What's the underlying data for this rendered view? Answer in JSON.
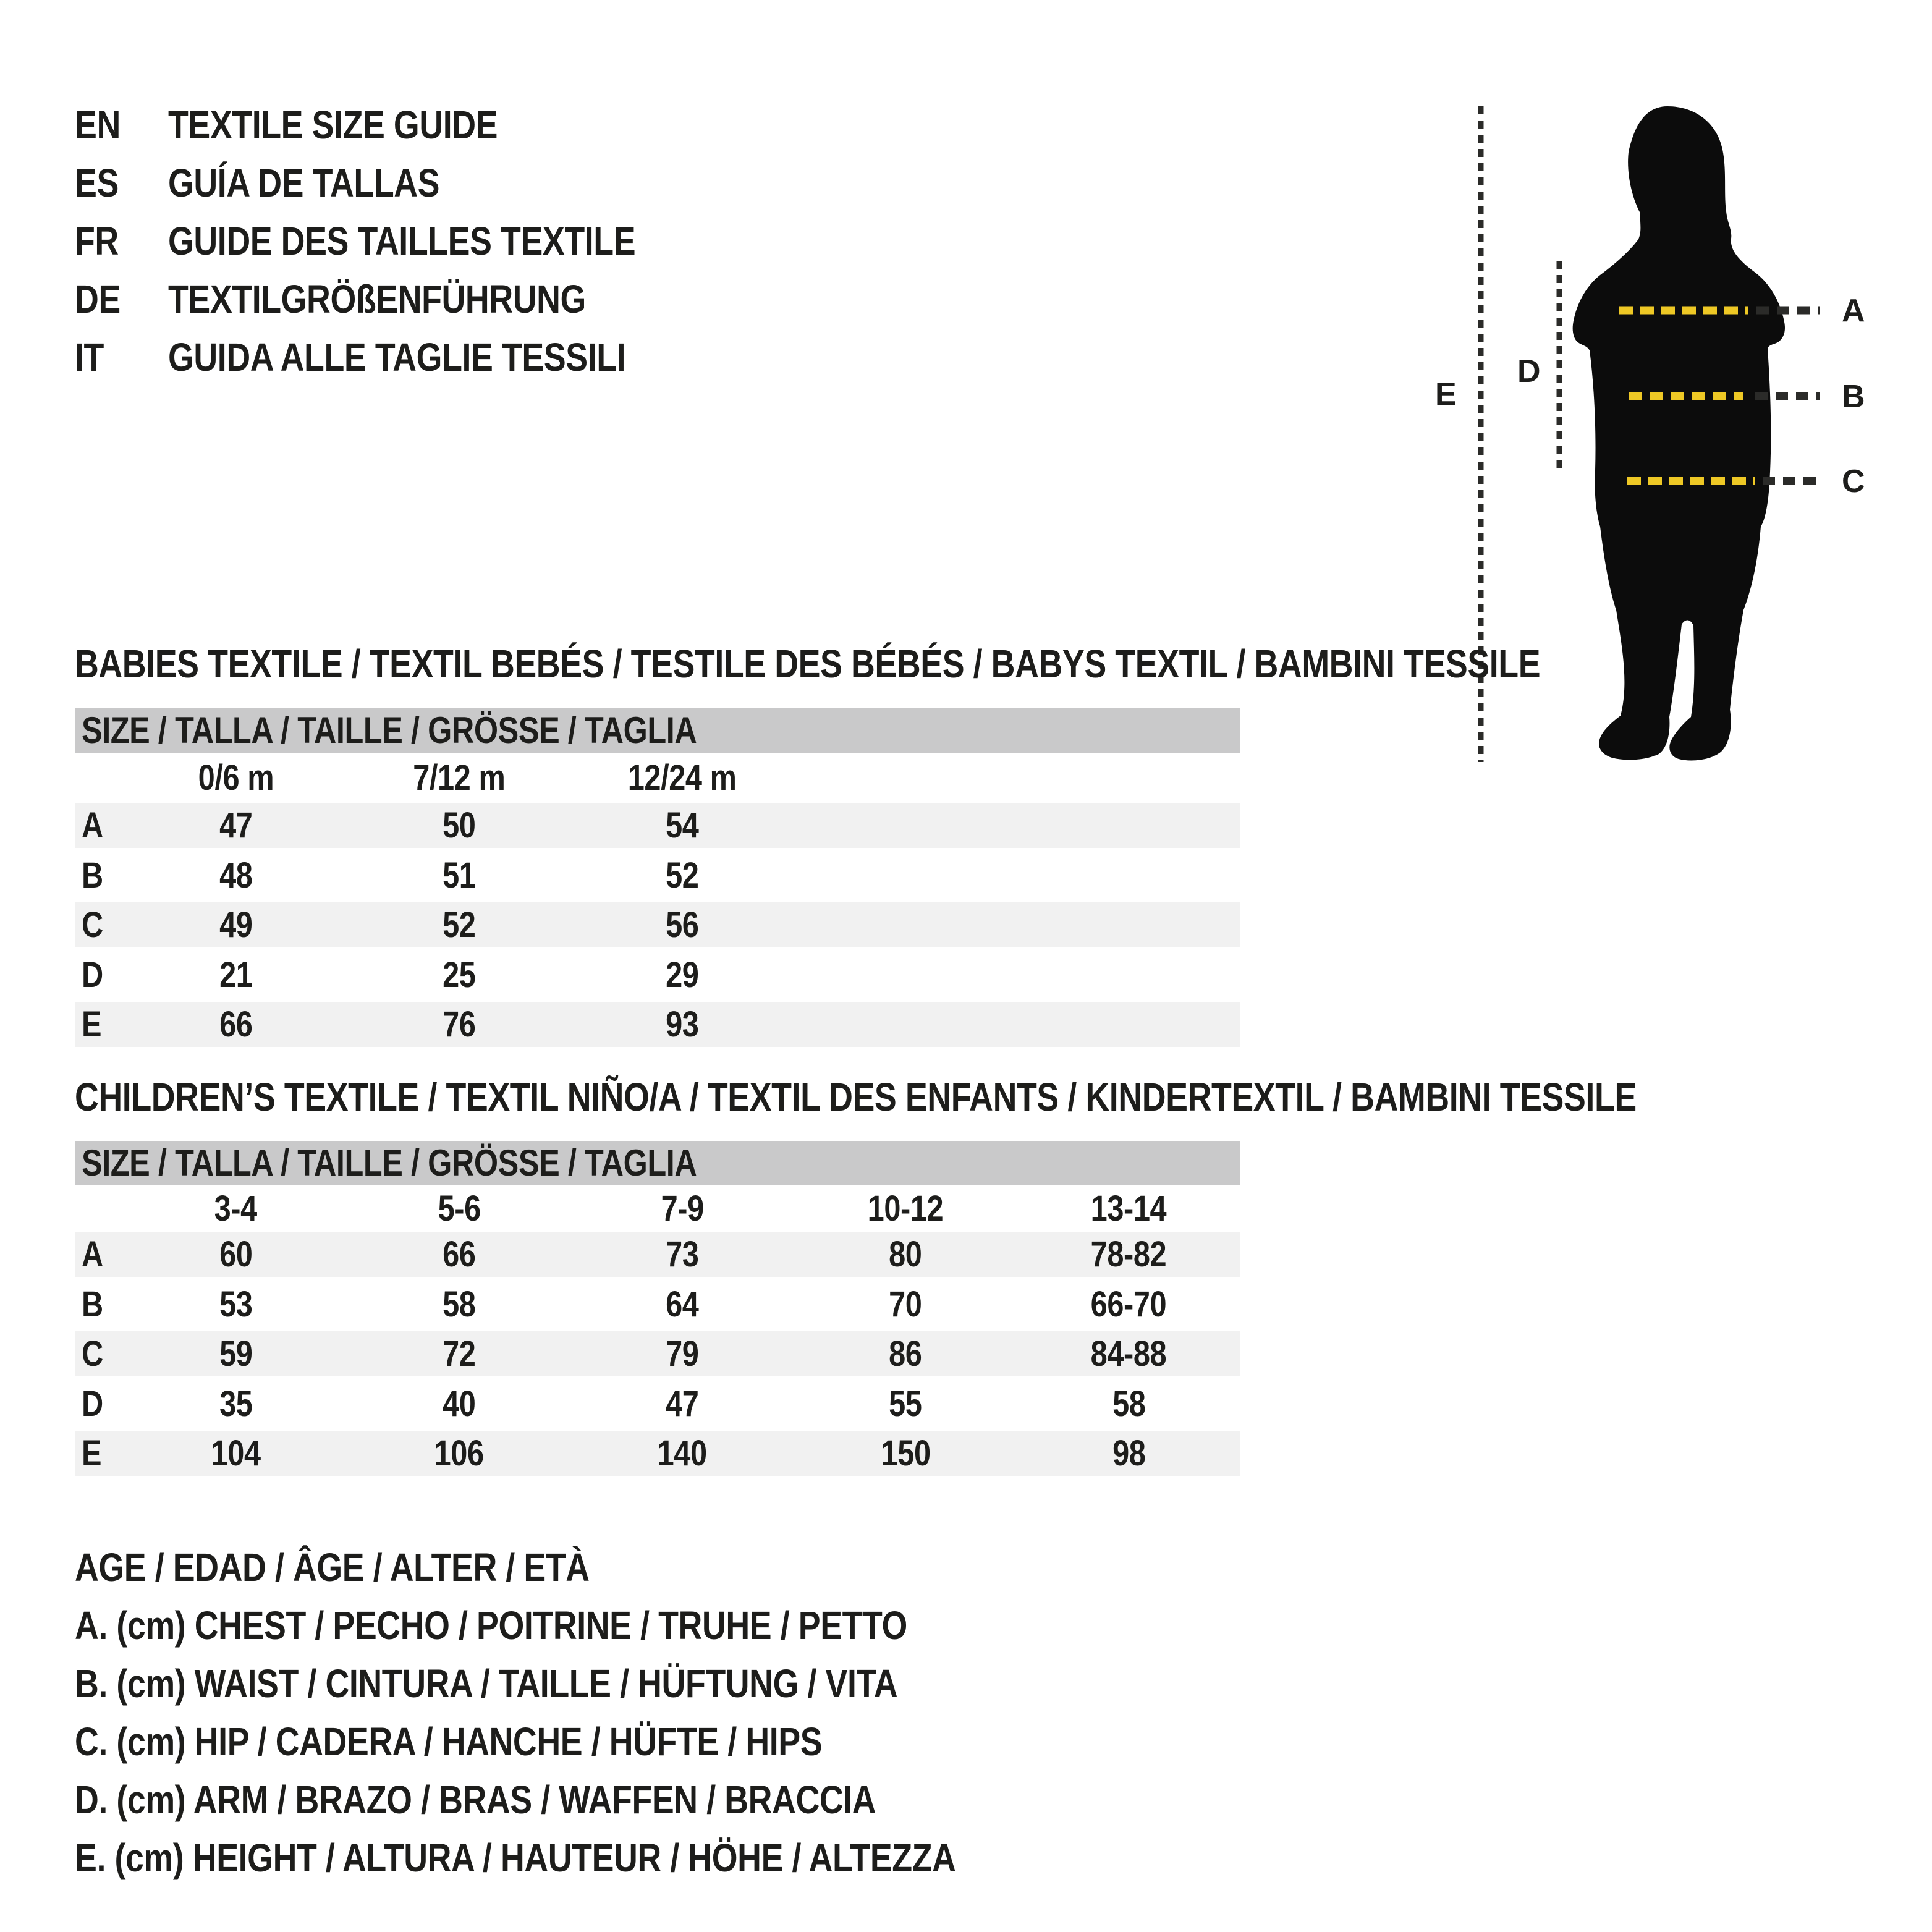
{
  "colors": {
    "ink": "#1d1d1b",
    "bar_gray": "#c9c9ca",
    "row_gray": "#f1f1f1",
    "silhouette": "#0c0c0c",
    "measure_yellow": "#eec825",
    "measure_dark": "#2b2b29"
  },
  "header": {
    "languages": [
      {
        "code": "EN",
        "title": "TEXTILE SIZE GUIDE"
      },
      {
        "code": "ES",
        "title": "GUÍA DE TALLAS"
      },
      {
        "code": "FR",
        "title": "GUIDE DES TAILLES TEXTILE"
      },
      {
        "code": "DE",
        "title": "TEXTILGRÖßENFÜHRUNG"
      },
      {
        "code": "IT",
        "title": "GUIDA ALLE TAGLIE TESSILI"
      }
    ]
  },
  "figure": {
    "labels": {
      "A": "A",
      "B": "B",
      "C": "C",
      "D": "D",
      "E": "E"
    }
  },
  "babies": {
    "heading": "BABIES TEXTILE / TEXTIL BEBÉS / TESTILE DES BÉBÉS / BABYS TEXTIL / BAMBINI TESSILE",
    "table": {
      "size_header": "SIZE / TALLA / TAILLE / GRÖSSE / TAGLIA",
      "columns": [
        "0/6 m",
        "7/12 m",
        "12/24 m"
      ],
      "rows": [
        {
          "label": "A",
          "values": [
            "47",
            "50",
            "54"
          ]
        },
        {
          "label": "B",
          "values": [
            "48",
            "51",
            "52"
          ]
        },
        {
          "label": "C",
          "values": [
            "49",
            "52",
            "56"
          ]
        },
        {
          "label": "D",
          "values": [
            "21",
            "25",
            "29"
          ]
        },
        {
          "label": "E",
          "values": [
            "66",
            "76",
            "93"
          ]
        }
      ]
    }
  },
  "children": {
    "heading": "CHILDREN’S TEXTILE / TEXTIL NIÑO/A / TEXTIL DES ENFANTS / KINDERTEXTIL / BAMBINI TESSILE",
    "table": {
      "size_header": "SIZE / TALLA / TAILLE / GRÖSSE / TAGLIA",
      "columns": [
        "3-4",
        "5-6",
        "7-9",
        "10-12",
        "13-14"
      ],
      "rows": [
        {
          "label": "A",
          "values": [
            "60",
            "66",
            "73",
            "80",
            "78-82"
          ]
        },
        {
          "label": "B",
          "values": [
            "53",
            "58",
            "64",
            "70",
            "66-70"
          ]
        },
        {
          "label": "C",
          "values": [
            "59",
            "72",
            "79",
            "86",
            "84-88"
          ]
        },
        {
          "label": "D",
          "values": [
            "35",
            "40",
            "47",
            "55",
            "58"
          ]
        },
        {
          "label": "E",
          "values": [
            "104",
            "106",
            "140",
            "150",
            "98"
          ]
        }
      ]
    }
  },
  "legend": {
    "lines": [
      "AGE / EDAD / ÂGE / ALTER / ETÀ",
      "A. (cm) CHEST / PECHO / POITRINE / TRUHE / PETTO",
      "B. (cm) WAIST / CINTURA / TAILLE / HÜFTUNG / VITA",
      "C. (cm) HIP / CADERA / HANCHE / HÜFTE / HIPS",
      "D. (cm) ARM / BRAZO / BRAS / WAFFEN / BRACCIA",
      "E. (cm) HEIGHT / ALTURA / HAUTEUR / HÖHE / ALTEZZA"
    ]
  }
}
